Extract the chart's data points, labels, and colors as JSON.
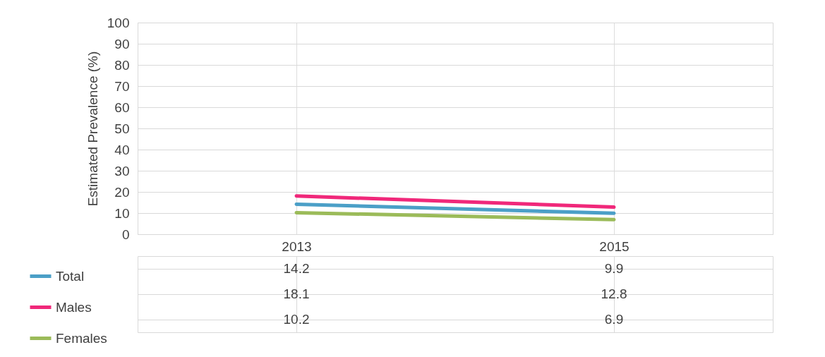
{
  "chart_data": {
    "type": "line",
    "ylabel": "Estimated Prevalence (%)",
    "categories": [
      "2013",
      "2015"
    ],
    "series": [
      {
        "name": "Total",
        "color": "#4b9fc7",
        "values": [
          14.2,
          9.9
        ]
      },
      {
        "name": "Males",
        "color": "#f0287a",
        "values": [
          18.1,
          12.8
        ]
      },
      {
        "name": "Females",
        "color": "#9bbb59",
        "values": [
          10.2,
          6.9
        ]
      }
    ],
    "ylim": [
      0,
      100
    ],
    "yticks": [
      0,
      10,
      20,
      30,
      40,
      50,
      60,
      70,
      80,
      90,
      100
    ],
    "grid": true,
    "legend": "bottom left",
    "data_labels": true
  }
}
